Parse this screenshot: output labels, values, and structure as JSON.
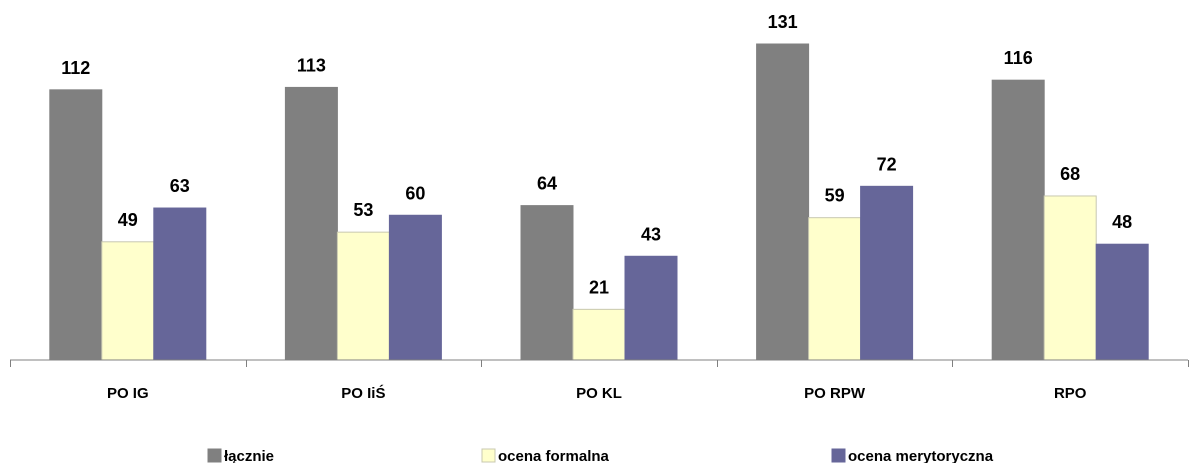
{
  "chart_data": {
    "type": "bar",
    "categories": [
      "PO IG",
      "PO IiŚ",
      "PO KL",
      "PO RPW",
      "RPO"
    ],
    "series": [
      {
        "name": "łącznie",
        "values": [
          112,
          113,
          64,
          131,
          116
        ],
        "color": "#808080",
        "stroke": "#808080"
      },
      {
        "name": "ocena formalna",
        "values": [
          49,
          53,
          21,
          59,
          68
        ],
        "color": "#FFFFCC",
        "stroke": "#C8C8B0"
      },
      {
        "name": "ocena merytoryczna",
        "values": [
          63,
          60,
          43,
          72,
          48
        ],
        "color": "#666699",
        "stroke": "#666699"
      }
    ],
    "ylim": [
      0,
      131
    ],
    "grid": false,
    "legend_position": "bottom",
    "title": "",
    "xlabel": "",
    "ylabel": ""
  }
}
